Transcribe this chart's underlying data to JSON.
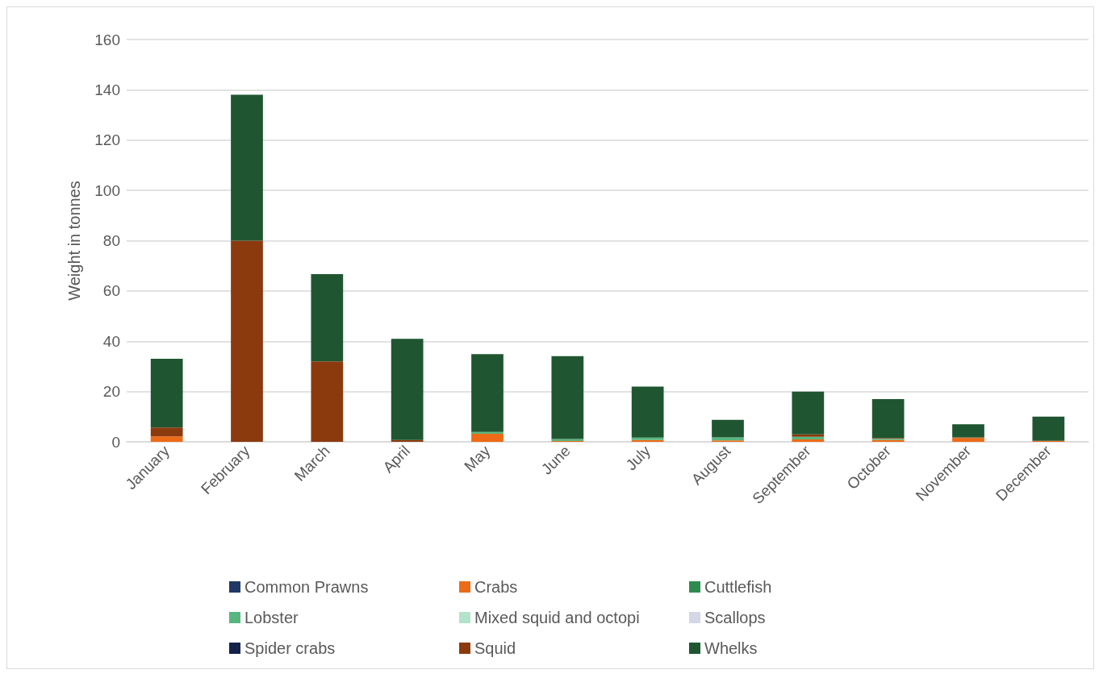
{
  "chart_data": {
    "type": "bar",
    "stacked": true,
    "ylabel": "Weight in tonnes",
    "categories": [
      "January",
      "February",
      "March",
      "April",
      "May",
      "June",
      "July",
      "August",
      "September",
      "October",
      "November",
      "December"
    ],
    "series": [
      {
        "name": "Common Prawns",
        "color": "#203864",
        "values": [
          0,
          0,
          0,
          0,
          0,
          0,
          0,
          0,
          0,
          0,
          0,
          0
        ]
      },
      {
        "name": "Crabs",
        "color": "#ed6a16",
        "values": [
          2.2,
          0,
          0,
          0,
          3.2,
          0.3,
          0.7,
          0.6,
          1,
          0.7,
          1.5,
          0.4
        ]
      },
      {
        "name": "Cuttlefish",
        "color": "#2e8b50",
        "values": [
          0,
          0,
          0,
          0,
          0,
          0,
          0,
          0,
          0,
          0,
          0,
          0
        ]
      },
      {
        "name": "Lobster",
        "color": "#57b77f",
        "values": [
          0,
          0,
          0,
          0,
          0.7,
          0.8,
          1,
          1.2,
          1,
          0.5,
          0,
          0
        ]
      },
      {
        "name": "Mixed squid and octopi",
        "color": "#b3e3cb",
        "values": [
          0,
          0,
          0,
          0,
          0,
          0,
          0,
          null,
          0,
          0,
          0,
          0
        ]
      },
      {
        "name": "Scallops",
        "color": "#d3d7e6",
        "values": [
          0,
          0,
          0,
          0,
          0,
          0,
          0,
          0,
          0,
          0,
          0,
          0
        ]
      },
      {
        "name": "Spider crabs",
        "color": "#14224a",
        "values": [
          0,
          0,
          0,
          0,
          0,
          0,
          0,
          0,
          0,
          0,
          0,
          0
        ]
      },
      {
        "name": "Squid",
        "color": "#8b3a0e",
        "values": [
          3.5,
          80,
          32,
          0.7,
          0,
          0,
          0,
          0,
          1,
          0.3,
          0.3,
          0
        ]
      },
      {
        "name": "Whelks",
        "color": "#1f5631",
        "values": [
          27.3,
          58,
          34.7,
          40.3,
          31,
          33,
          20.3,
          6.9,
          17,
          15.5,
          5.2,
          9.6
        ]
      }
    ],
    "ylim": [
      0,
      160
    ],
    "yticks": [
      0,
      20,
      40,
      60,
      80,
      100,
      120,
      140,
      160
    ],
    "grid": "y",
    "legend": "bottom"
  }
}
